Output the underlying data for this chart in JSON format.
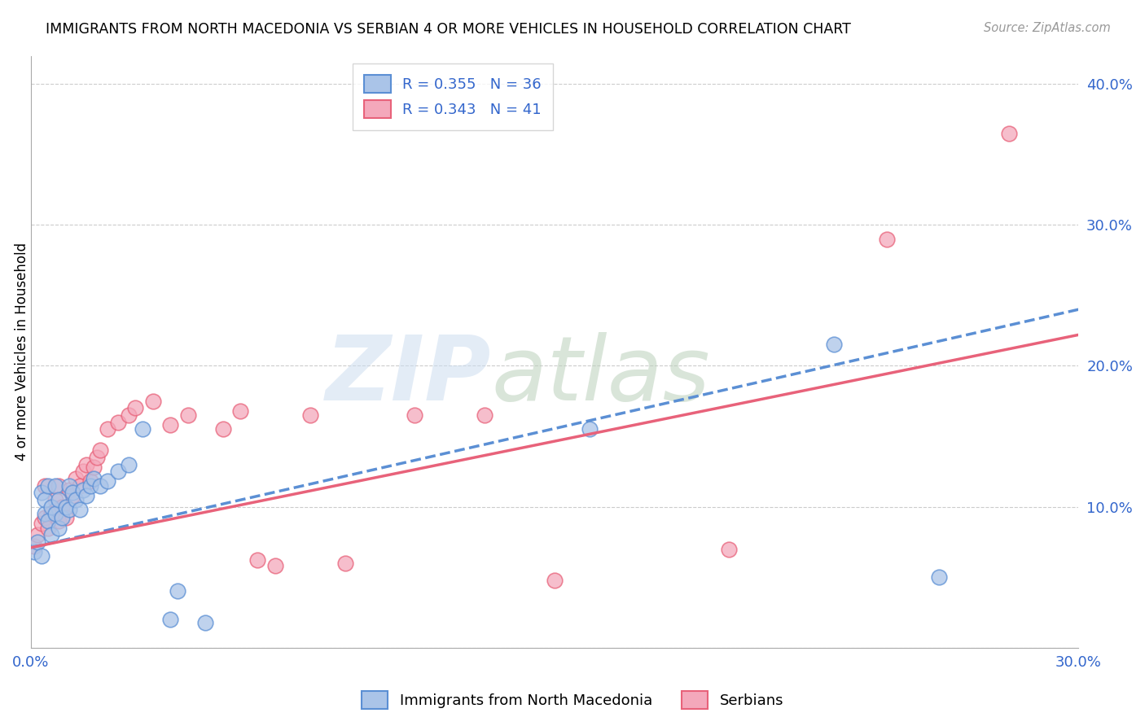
{
  "title": "IMMIGRANTS FROM NORTH MACEDONIA VS SERBIAN 4 OR MORE VEHICLES IN HOUSEHOLD CORRELATION CHART",
  "source": "Source: ZipAtlas.com",
  "ylabel": "4 or more Vehicles in Household",
  "xlim": [
    0.0,
    0.3
  ],
  "ylim": [
    0.0,
    0.42
  ],
  "xticks": [
    0.0,
    0.05,
    0.1,
    0.15,
    0.2,
    0.25,
    0.3
  ],
  "xticklabels": [
    "0.0%",
    "",
    "",
    "",
    "",
    "",
    "30.0%"
  ],
  "yticks_right": [
    0.0,
    0.1,
    0.2,
    0.3,
    0.4
  ],
  "yticklabels_right": [
    "",
    "10.0%",
    "20.0%",
    "30.0%",
    "40.0%"
  ],
  "series1_color": "#aac4e8",
  "series2_color": "#f4a8bb",
  "trend1_color": "#5b8fd4",
  "trend2_color": "#e8627a",
  "legend_label1": "Immigrants from North Macedonia",
  "legend_label2": "Serbians",
  "blue_scatter_x": [
    0.001,
    0.002,
    0.003,
    0.003,
    0.004,
    0.004,
    0.005,
    0.005,
    0.006,
    0.006,
    0.007,
    0.007,
    0.008,
    0.008,
    0.009,
    0.01,
    0.011,
    0.011,
    0.012,
    0.013,
    0.014,
    0.015,
    0.016,
    0.017,
    0.018,
    0.02,
    0.022,
    0.025,
    0.028,
    0.032,
    0.04,
    0.042,
    0.05,
    0.16,
    0.23,
    0.26
  ],
  "blue_scatter_y": [
    0.068,
    0.075,
    0.065,
    0.11,
    0.095,
    0.105,
    0.09,
    0.115,
    0.08,
    0.1,
    0.095,
    0.115,
    0.085,
    0.105,
    0.092,
    0.1,
    0.098,
    0.115,
    0.11,
    0.105,
    0.098,
    0.112,
    0.108,
    0.115,
    0.12,
    0.115,
    0.118,
    0.125,
    0.13,
    0.155,
    0.02,
    0.04,
    0.018,
    0.155,
    0.215,
    0.05
  ],
  "pink_scatter_x": [
    0.001,
    0.002,
    0.003,
    0.004,
    0.004,
    0.005,
    0.006,
    0.007,
    0.008,
    0.008,
    0.009,
    0.01,
    0.011,
    0.012,
    0.013,
    0.014,
    0.015,
    0.016,
    0.017,
    0.018,
    0.019,
    0.02,
    0.022,
    0.025,
    0.028,
    0.03,
    0.035,
    0.04,
    0.045,
    0.055,
    0.06,
    0.065,
    0.07,
    0.08,
    0.09,
    0.11,
    0.13,
    0.15,
    0.2,
    0.245,
    0.28
  ],
  "pink_scatter_y": [
    0.072,
    0.08,
    0.088,
    0.092,
    0.115,
    0.085,
    0.095,
    0.105,
    0.09,
    0.115,
    0.1,
    0.092,
    0.112,
    0.108,
    0.12,
    0.115,
    0.125,
    0.13,
    0.118,
    0.128,
    0.135,
    0.14,
    0.155,
    0.16,
    0.165,
    0.17,
    0.175,
    0.158,
    0.165,
    0.155,
    0.168,
    0.062,
    0.058,
    0.165,
    0.06,
    0.165,
    0.165,
    0.048,
    0.07,
    0.29,
    0.365
  ],
  "trend1_x0": 0.0,
  "trend1_y0": 0.071,
  "trend1_x1": 0.3,
  "trend1_y1": 0.24,
  "trend2_x0": 0.0,
  "trend2_y0": 0.071,
  "trend2_x1": 0.3,
  "trend2_y1": 0.222
}
